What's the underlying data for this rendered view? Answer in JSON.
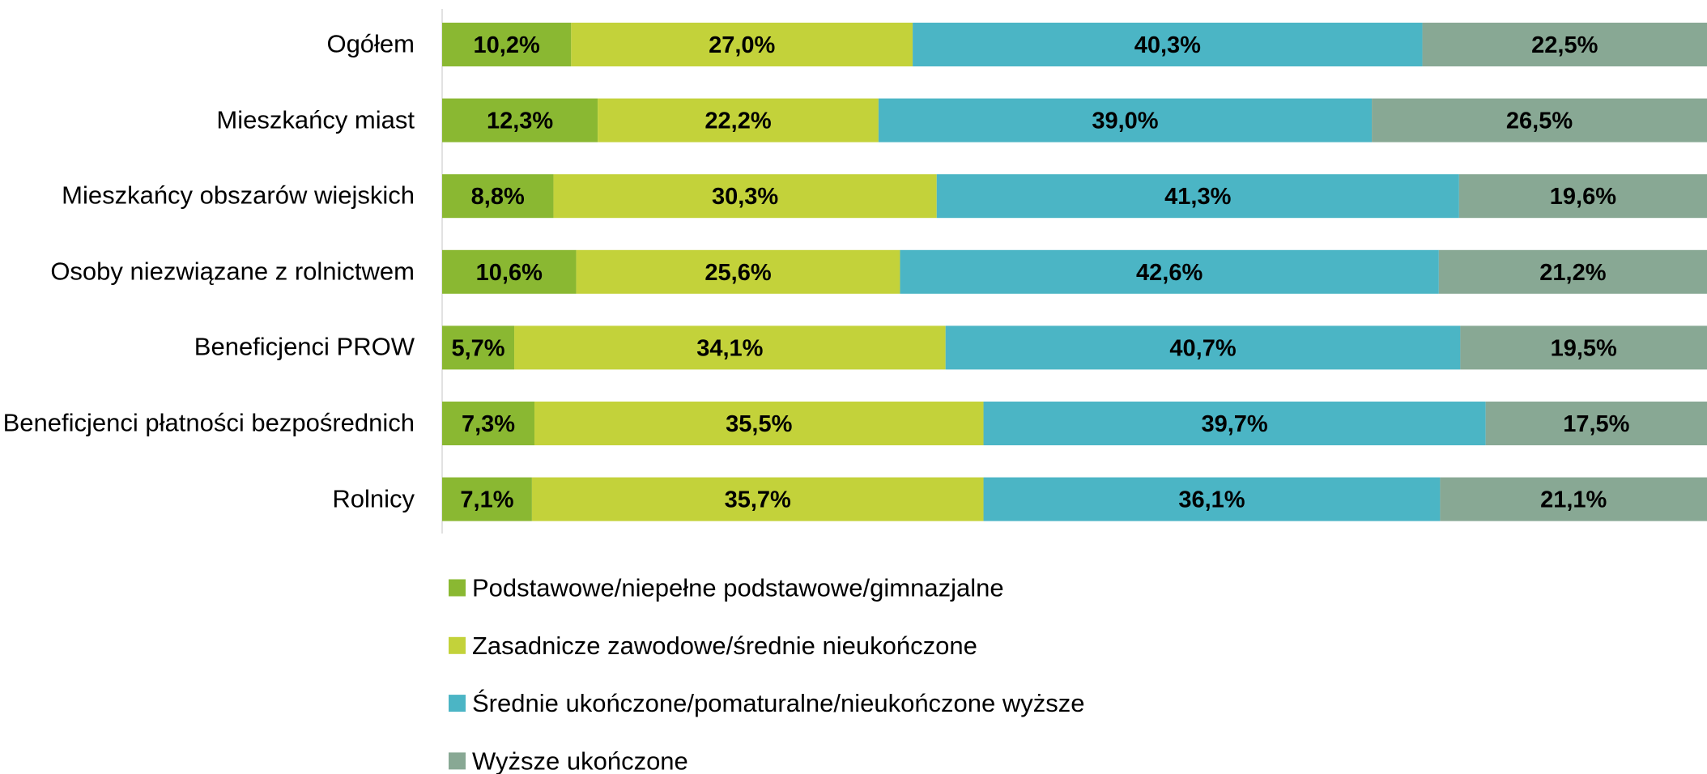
{
  "chart_data": {
    "type": "stacked-bar-horizontal",
    "categories": [
      "Ogółem",
      "Mieszkańcy miast",
      "Mieszkańcy obszarów wiejskich",
      "Osoby niezwiązane z rolnictwem",
      "Beneficjenci PROW",
      "Beneficjenci płatności bezpośrednich",
      "Rolnicy"
    ],
    "xlim": [
      0,
      100
    ],
    "series": [
      {
        "name": "Podstawowe/niepełne podstawowe/gimnazjalne",
        "color": "#8ab832",
        "values": [
          10.2,
          12.3,
          8.8,
          10.6,
          5.7,
          7.3,
          7.1
        ],
        "value_labels": [
          "10,2%",
          "12,3%",
          "8,8%",
          "10,6%",
          "5,7%",
          "7,3%",
          "7,1%"
        ]
      },
      {
        "name": "Zasadnicze zawodowe/średnie nieukończone",
        "color": "#c3d23a",
        "values": [
          27.0,
          22.2,
          30.3,
          25.6,
          34.1,
          35.5,
          35.7
        ],
        "value_labels": [
          "27,0%",
          "22,2%",
          "30,3%",
          "25,6%",
          "34,1%",
          "35,5%",
          "35,7%"
        ]
      },
      {
        "name": "Średnie ukończone/pomaturalne/nieukończone wyższe",
        "color": "#4bb5c5",
        "values": [
          40.3,
          39.0,
          41.3,
          42.6,
          40.7,
          39.7,
          36.1
        ],
        "value_labels": [
          "40,3%",
          "39,0%",
          "41,3%",
          "42,6%",
          "40,7%",
          "39,7%",
          "36,1%"
        ]
      },
      {
        "name": "Wyższe ukończone",
        "color": "#88a894",
        "values": [
          22.5,
          26.5,
          19.6,
          21.2,
          19.5,
          17.5,
          21.1
        ],
        "value_labels": [
          "22,5%",
          "26,5%",
          "19,6%",
          "21,2%",
          "19,5%",
          "17,5%",
          "21,1%"
        ]
      }
    ],
    "legend": "bottom"
  }
}
